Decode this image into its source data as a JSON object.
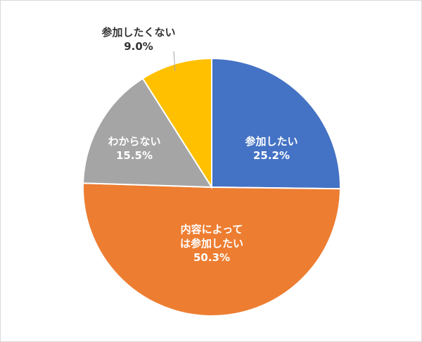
{
  "chart_data": {
    "type": "pie",
    "categories": [
      "参加したい",
      "内容によっては参加したい",
      "わからない",
      "参加したくない"
    ],
    "values": [
      25.2,
      50.3,
      15.5,
      9.0
    ],
    "value_labels": [
      "25.2%",
      "50.3%",
      "15.5%",
      "9.0%"
    ],
    "colors": [
      "#4472c4",
      "#ed7d31",
      "#a5a5a5",
      "#ffc000"
    ]
  }
}
